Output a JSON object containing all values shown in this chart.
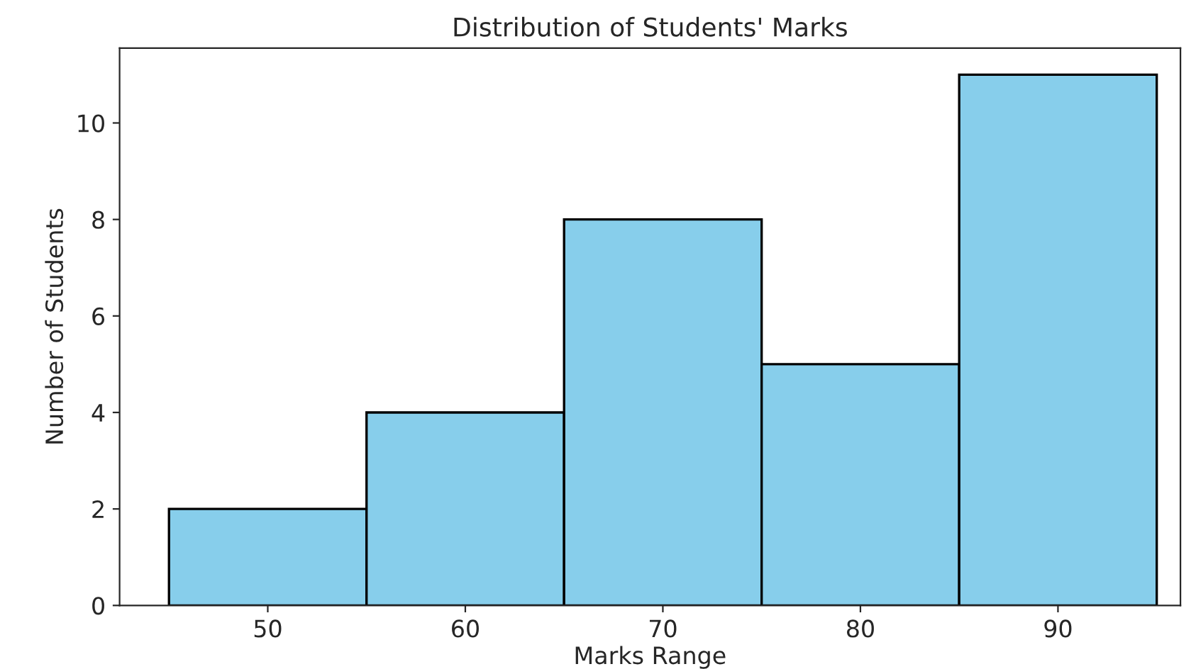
{
  "chart_data": {
    "type": "histogram",
    "title": "Distribution of Students' Marks",
    "xlabel": "Marks Range",
    "ylabel": "Number of Students",
    "bins": [
      45,
      55,
      65,
      75,
      85,
      95
    ],
    "values": [
      2,
      4,
      8,
      5,
      11
    ],
    "color": "#87ceeb",
    "xlim": [
      42.5,
      96.2
    ],
    "xticks": [
      50,
      60,
      70,
      80,
      90
    ],
    "ylim": [
      0,
      11.55
    ],
    "yticks": [
      0,
      2,
      4,
      6,
      8,
      10
    ],
    "grid": false
  }
}
